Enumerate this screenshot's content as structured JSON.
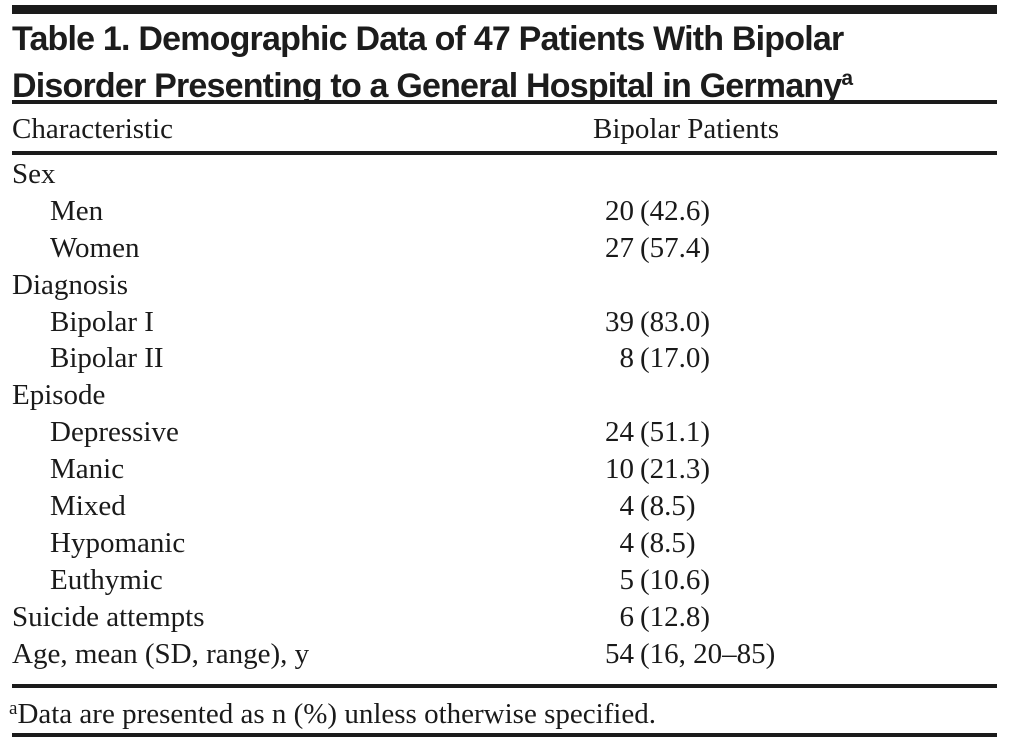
{
  "table": {
    "title_line1": "Table 1. Demographic Data of 47 Patients With Bipolar",
    "title_line2": "Disorder Presenting to a General Hospital in Germany",
    "title_superscript": "a",
    "header": {
      "characteristic": "Characteristic",
      "patients": "Bipolar Patients"
    },
    "rows": [
      {
        "label": "Sex",
        "n": "",
        "pct": ""
      },
      {
        "label": "Men",
        "n": "20",
        "pct": "(42.6)"
      },
      {
        "label": "Women",
        "n": "27",
        "pct": "(57.4)"
      },
      {
        "label": "Diagnosis",
        "n": "",
        "pct": ""
      },
      {
        "label": "Bipolar I",
        "n": "39",
        "pct": "(83.0)"
      },
      {
        "label": "Bipolar II",
        "n": "8",
        "pct": "(17.0)"
      },
      {
        "label": "Episode",
        "n": "",
        "pct": ""
      },
      {
        "label": "Depressive",
        "n": "24",
        "pct": "(51.1)"
      },
      {
        "label": "Manic",
        "n": "10",
        "pct": "(21.3)"
      },
      {
        "label": "Mixed",
        "n": "4",
        "pct": "(8.5)"
      },
      {
        "label": "Hypomanic",
        "n": "4",
        "pct": "(8.5)"
      },
      {
        "label": "Euthymic",
        "n": "5",
        "pct": "(10.6)"
      },
      {
        "label": "Suicide attempts",
        "n": "6",
        "pct": "(12.8)"
      },
      {
        "label": "Age, mean (SD, range), y",
        "n": "54",
        "pct": "(16, 20–85)"
      }
    ],
    "footnote": {
      "marker": "a",
      "text": "Data are presented as n (%) unless otherwise specified."
    },
    "colors": {
      "text": "#1a1a1a",
      "rule": "#1b1b1b",
      "background": "#ffffff"
    }
  }
}
